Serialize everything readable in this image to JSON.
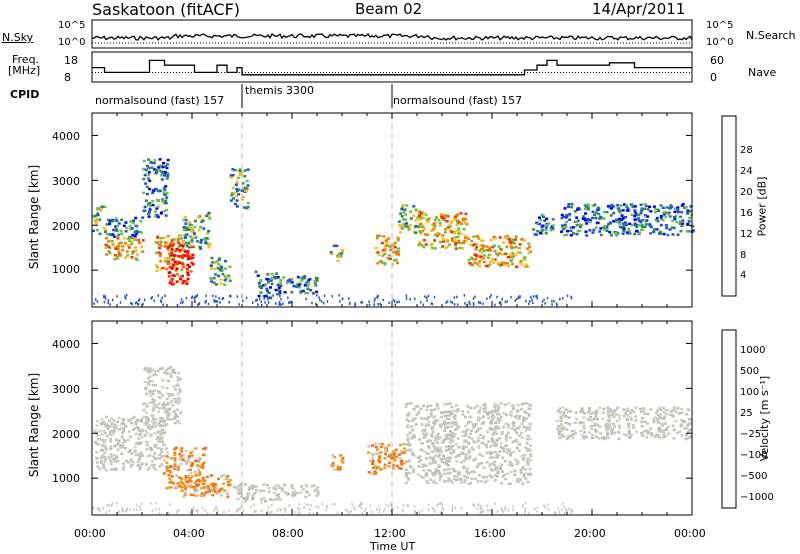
{
  "header": {
    "station": "Saskatoon (fitACF)",
    "beam": "Beam 02",
    "date": "14/Apr/2011"
  },
  "top_panels": {
    "nsky_label": "N.Sky",
    "nsearch_label": "N.Search",
    "nsky_tick_high": "10^5",
    "nsky_tick_low": "10^0",
    "nsearch_tick_high": "10^5",
    "nsearch_tick_low": "10^0",
    "freq_label": "Freq.",
    "freq_unit": "[MHz]",
    "freq_tick_high": "18",
    "freq_tick_low": "8",
    "nave_label": "Nave",
    "nave_tick_high": "60",
    "nave_tick_low": "0",
    "cpid_label": "CPID",
    "cpid_segments": [
      {
        "label": "normalsound (fast) 157",
        "start_h": 0,
        "end_h": 6.0
      },
      {
        "label": "themis 3300",
        "start_h": 6.0,
        "end_h": 12.0
      },
      {
        "label": "normalsound (fast) 157",
        "start_h": 12.0,
        "end_h": 24.0
      }
    ]
  },
  "panels": {
    "power_ylabel": "Slant Range [km]",
    "velocity_ylabel": "Slant Range [km]",
    "y_ticks": [
      "1000",
      "2000",
      "3000",
      "4000"
    ],
    "x_ticks": [
      "00:00",
      "04:00",
      "08:00",
      "12:00",
      "16:00",
      "20:00",
      "00:00"
    ],
    "xlabel": "Time UT"
  },
  "power_colorbar": {
    "label": "Power [dB]",
    "ticks": [
      "4",
      "8",
      "12",
      "16",
      "20",
      "24",
      "28"
    ],
    "colors": [
      "#0000ff",
      "#1f57c8",
      "#2f8a5a",
      "#6fbf4f",
      "#f0c020",
      "#f08000",
      "#ff0000"
    ]
  },
  "velocity_colorbar": {
    "label": "Velocity [m s⁻¹]",
    "ticks": [
      "1000",
      "500",
      "100",
      "25",
      "−25",
      "−100",
      "−500",
      "−1000"
    ],
    "colors": [
      "#1e3cc8",
      "#2b6fb0",
      "#2f8a5a",
      "#6fbf3f",
      "#c8c8c0",
      "#f0a020",
      "#f07010",
      "#ff0000"
    ]
  },
  "chart_data": {
    "type": "heatmap",
    "x_range_hours": [
      0,
      24
    ],
    "y_range_km": [
      180,
      4500
    ],
    "freq_steps": [
      {
        "start_h": 0,
        "end_h": 0.5,
        "mhz": 14
      },
      {
        "start_h": 0.5,
        "end_h": 2.3,
        "mhz": 12
      },
      {
        "start_h": 2.3,
        "end_h": 2.9,
        "mhz": 17
      },
      {
        "start_h": 2.9,
        "end_h": 4.1,
        "mhz": 15
      },
      {
        "start_h": 4.1,
        "end_h": 5.0,
        "mhz": 12
      },
      {
        "start_h": 5.0,
        "end_h": 5.4,
        "mhz": 15
      },
      {
        "start_h": 5.4,
        "end_h": 5.8,
        "mhz": 12
      },
      {
        "start_h": 5.8,
        "end_h": 6.0,
        "mhz": 14
      },
      {
        "start_h": 6.0,
        "end_h": 17.3,
        "mhz": 11
      },
      {
        "start_h": 17.3,
        "end_h": 17.8,
        "mhz": 13
      },
      {
        "start_h": 17.8,
        "end_h": 18.2,
        "mhz": 15
      },
      {
        "start_h": 18.2,
        "end_h": 18.6,
        "mhz": 17
      },
      {
        "start_h": 18.6,
        "end_h": 20.7,
        "mhz": 15
      },
      {
        "start_h": 20.7,
        "end_h": 21.7,
        "mhz": 16
      },
      {
        "start_h": 21.7,
        "end_h": 24,
        "mhz": 14
      }
    ],
    "nave_level": 22,
    "power_patches": [
      {
        "t0": 0.0,
        "t1": 0.5,
        "r0": 1800,
        "r1": 2450,
        "c": "mix"
      },
      {
        "t0": 0.5,
        "t1": 2.0,
        "r0": 1250,
        "r1": 1750,
        "c": "hot"
      },
      {
        "t0": 0.5,
        "t1": 2.0,
        "r0": 1750,
        "r1": 2200,
        "c": "cool"
      },
      {
        "t0": 2.0,
        "t1": 3.0,
        "r0": 2200,
        "r1": 3500,
        "c": "cool"
      },
      {
        "t0": 2.5,
        "t1": 3.6,
        "r0": 1000,
        "r1": 1800,
        "c": "hot"
      },
      {
        "t0": 3.0,
        "t1": 4.0,
        "r0": 700,
        "r1": 1700,
        "c": "red"
      },
      {
        "t0": 3.6,
        "t1": 4.7,
        "r0": 1500,
        "r1": 2300,
        "c": "mix"
      },
      {
        "t0": 4.7,
        "t1": 5.5,
        "r0": 700,
        "r1": 1300,
        "c": "mix"
      },
      {
        "t0": 5.5,
        "t1": 6.2,
        "r0": 2400,
        "r1": 3300,
        "c": "mix"
      },
      {
        "t0": 6.5,
        "t1": 7.5,
        "r0": 400,
        "r1": 1000,
        "c": "cool"
      },
      {
        "t0": 7.5,
        "t1": 9.0,
        "r0": 500,
        "r1": 900,
        "c": "cool"
      },
      {
        "t0": 9.5,
        "t1": 10.0,
        "r0": 1200,
        "r1": 1600,
        "c": "mix"
      },
      {
        "t0": 11.3,
        "t1": 12.3,
        "r0": 1150,
        "r1": 1800,
        "c": "hot"
      },
      {
        "t0": 12.2,
        "t1": 13.2,
        "r0": 1800,
        "r1": 2500,
        "c": "mix"
      },
      {
        "t0": 13.0,
        "t1": 15.0,
        "r0": 1500,
        "r1": 2300,
        "c": "hot"
      },
      {
        "t0": 15.0,
        "t1": 17.5,
        "r0": 1100,
        "r1": 1800,
        "c": "hot"
      },
      {
        "t0": 17.6,
        "t1": 18.4,
        "r0": 1800,
        "r1": 2300,
        "c": "cool"
      },
      {
        "t0": 18.7,
        "t1": 24.0,
        "r0": 1800,
        "r1": 2500,
        "c": "cool"
      }
    ],
    "velocity_patches": [
      {
        "t0": 0.0,
        "t1": 3.0,
        "r0": 1200,
        "r1": 2400,
        "c": "gray"
      },
      {
        "t0": 2.0,
        "t1": 3.5,
        "r0": 2200,
        "r1": 3500,
        "c": "gray"
      },
      {
        "t0": 2.8,
        "t1": 4.5,
        "r0": 800,
        "r1": 1700,
        "c": "orange"
      },
      {
        "t0": 3.5,
        "t1": 5.5,
        "r0": 600,
        "r1": 1100,
        "c": "orange"
      },
      {
        "t0": 5.5,
        "t1": 7.5,
        "r0": 500,
        "r1": 900,
        "c": "gray"
      },
      {
        "t0": 7.5,
        "t1": 9.0,
        "r0": 600,
        "r1": 900,
        "c": "gray"
      },
      {
        "t0": 9.5,
        "t1": 10.0,
        "r0": 1200,
        "r1": 1600,
        "c": "orange"
      },
      {
        "t0": 11.0,
        "t1": 12.5,
        "r0": 1100,
        "r1": 1800,
        "c": "orange"
      },
      {
        "t0": 12.5,
        "t1": 17.5,
        "r0": 900,
        "r1": 2700,
        "c": "gray"
      },
      {
        "t0": 18.5,
        "t1": 24.0,
        "r0": 1900,
        "r1": 2600,
        "c": "gray"
      }
    ]
  }
}
